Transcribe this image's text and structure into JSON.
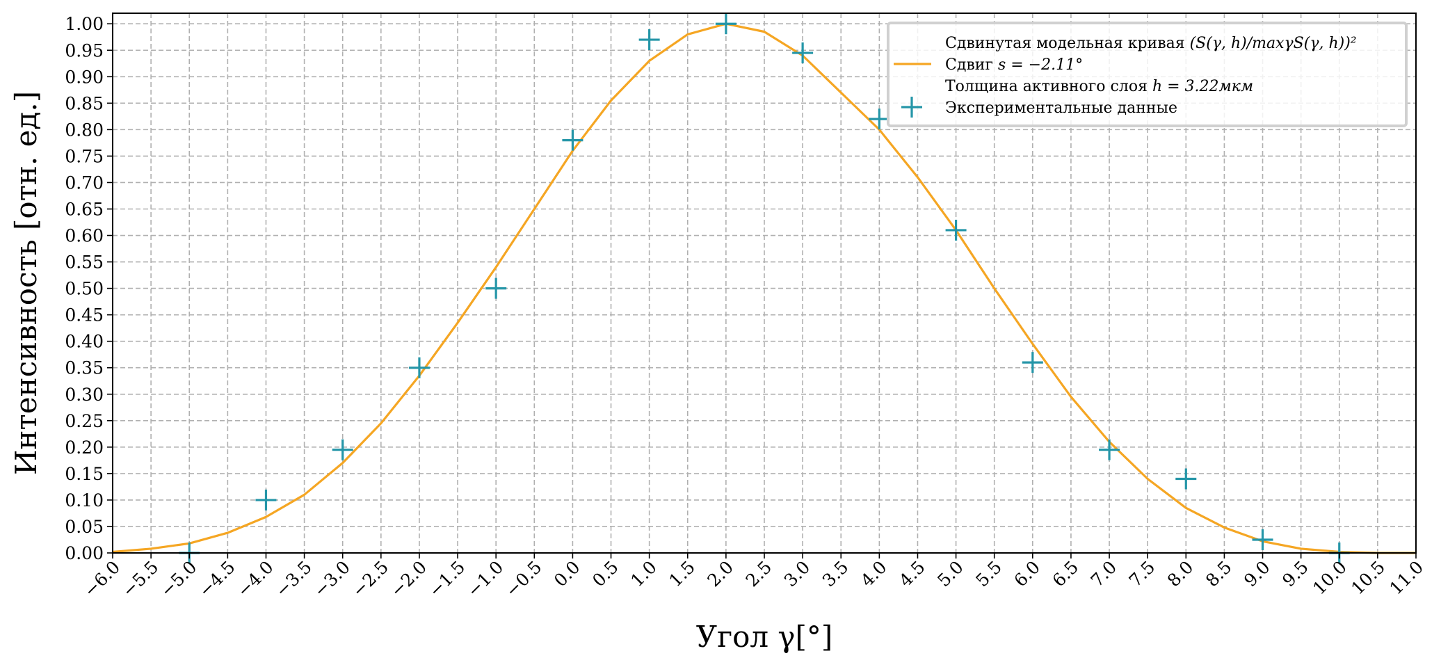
{
  "chart_data": {
    "type": "line",
    "xlabel": "Угол γ[°]",
    "ylabel": "Интенсивность [отн. ед.]",
    "xlim": [
      -6.0,
      11.0
    ],
    "ylim": [
      0.0,
      1.02
    ],
    "x_ticks": [
      -6.0,
      -5.5,
      -5.0,
      -4.5,
      -4.0,
      -3.5,
      -3.0,
      -2.5,
      -2.0,
      -1.5,
      -1.0,
      -0.5,
      0.0,
      0.5,
      1.0,
      1.5,
      2.0,
      2.5,
      3.0,
      3.5,
      4.0,
      4.5,
      5.0,
      5.5,
      6.0,
      6.5,
      7.0,
      7.5,
      8.0,
      8.5,
      9.0,
      9.5,
      10.0,
      10.5,
      11.0
    ],
    "x_tick_labels": [
      "−6.0",
      "−5.5",
      "−5.0",
      "−4.5",
      "−4.0",
      "−3.5",
      "−3.0",
      "−2.5",
      "−2.0",
      "−1.5",
      "−1.0",
      "−0.5",
      "0.0",
      "0.5",
      "1.0",
      "1.5",
      "2.0",
      "2.5",
      "3.0",
      "3.5",
      "4.0",
      "4.5",
      "5.0",
      "5.5",
      "6.0",
      "6.5",
      "7.0",
      "7.5",
      "8.0",
      "8.5",
      "9.0",
      "9.5",
      "10.0",
      "10.5",
      "11.0"
    ],
    "y_ticks": [
      0.0,
      0.05,
      0.1,
      0.15,
      0.2,
      0.25,
      0.3,
      0.35,
      0.4,
      0.45,
      0.5,
      0.55,
      0.6,
      0.65,
      0.7,
      0.75,
      0.8,
      0.85,
      0.9,
      0.95,
      1.0
    ],
    "y_tick_labels": [
      "0.00",
      "0.05",
      "0.10",
      "0.15",
      "0.20",
      "0.25",
      "0.30",
      "0.35",
      "0.40",
      "0.45",
      "0.50",
      "0.55",
      "0.60",
      "0.65",
      "0.70",
      "0.75",
      "0.80",
      "0.85",
      "0.90",
      "0.95",
      "1.00"
    ],
    "grid": true,
    "legend_position": "top-right",
    "legend": [
      {
        "label": "Сдвинутая модельная кривая ",
        "math": "(S(γ, h)/maxγS(γ, h))²",
        "marker": "none"
      },
      {
        "label": "Сдвиг ",
        "math": "s = −2.11°",
        "marker": "line"
      },
      {
        "label": "Толщина активного слоя ",
        "math": "h = 3.22мкм",
        "marker": "none"
      },
      {
        "label": "Экспериментальные данные",
        "math": "",
        "marker": "plus"
      }
    ],
    "series": [
      {
        "kind": "line",
        "color": "#f5a623",
        "x": [
          -6.0,
          -5.5,
          -5.0,
          -4.5,
          -4.0,
          -3.5,
          -3.0,
          -2.5,
          -2.0,
          -1.5,
          -1.0,
          -0.5,
          0.0,
          0.5,
          1.0,
          1.5,
          2.0,
          2.5,
          3.0,
          3.5,
          4.0,
          4.5,
          5.0,
          5.5,
          6.0,
          6.5,
          7.0,
          7.5,
          8.0,
          8.5,
          9.0,
          9.5,
          10.0,
          10.5,
          11.0
        ],
        "y": [
          0.002,
          0.008,
          0.018,
          0.038,
          0.068,
          0.11,
          0.17,
          0.245,
          0.335,
          0.435,
          0.54,
          0.65,
          0.76,
          0.855,
          0.93,
          0.98,
          1.0,
          0.985,
          0.94,
          0.87,
          0.8,
          0.71,
          0.61,
          0.5,
          0.395,
          0.295,
          0.21,
          0.14,
          0.085,
          0.048,
          0.022,
          0.008,
          0.002,
          0.0,
          0.0
        ]
      },
      {
        "kind": "scatter",
        "marker": "plus",
        "color": "#2596a8",
        "x": [
          -5,
          -4,
          -3,
          -2,
          -1,
          0,
          1,
          2,
          3,
          4,
          5,
          6,
          7,
          8,
          9,
          10
        ],
        "y": [
          0.0,
          0.1,
          0.195,
          0.35,
          0.5,
          0.78,
          0.97,
          1.0,
          0.945,
          0.82,
          0.61,
          0.36,
          0.195,
          0.14,
          0.025,
          0.0
        ]
      }
    ]
  }
}
